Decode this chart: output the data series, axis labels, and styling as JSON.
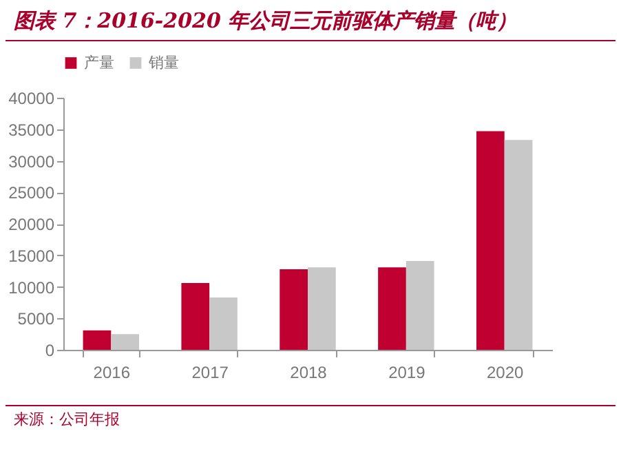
{
  "chart_data": {
    "type": "bar",
    "title": "图表 7：2016-2020 年公司三元前驱体产销量（吨）",
    "categories": [
      "2016",
      "2017",
      "2018",
      "2019",
      "2020"
    ],
    "series": [
      {
        "name": "产量",
        "color": "#c00030",
        "values": [
          3100,
          10600,
          12800,
          13100,
          34700
        ]
      },
      {
        "name": "销量",
        "color": "#c8c8c8",
        "values": [
          2500,
          8300,
          13100,
          14100,
          33300
        ]
      }
    ],
    "ylim": [
      0,
      40000
    ],
    "yticks": [
      0,
      5000,
      10000,
      15000,
      20000,
      25000,
      30000,
      35000,
      40000
    ],
    "grid": false,
    "legend": "top",
    "annotations": [
      "来源：公司年报"
    ]
  }
}
